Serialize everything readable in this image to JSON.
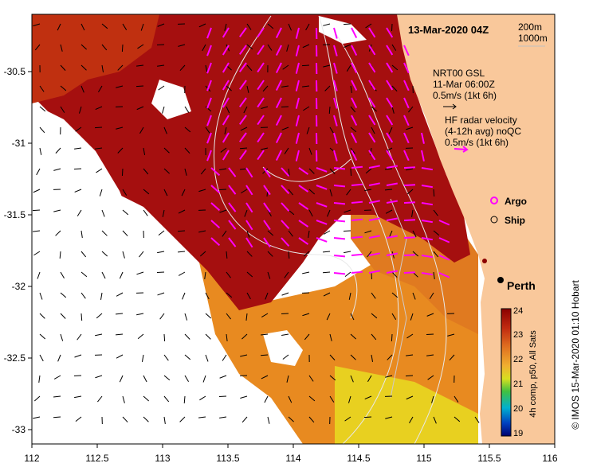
{
  "title": "13-Mar-2020 04Z",
  "depth_contours": [
    "200m",
    "1000m"
  ],
  "legend": {
    "model_line1": "NRT00 GSL",
    "model_line2": "11-Mar 06:00Z",
    "model_scale": "0.5m/s (1kt 6h)",
    "radar_line1": "HF radar velocity",
    "radar_line2": "(4-12h avg) noQC",
    "radar_scale": "0.5m/s (1kt 6h)",
    "argo": "Argo",
    "ship": "Ship"
  },
  "city": "Perth",
  "colorbar": {
    "ticks": [
      "24",
      "23",
      "22",
      "21",
      "20",
      "19"
    ],
    "caption": "4h comp, p50, All Sats",
    "colors": {
      "top": "#8b0000",
      "upper": "#d24a14",
      "mid": "#f0a020",
      "yellow": "#f0e020",
      "green": "#30c030",
      "cyan": "#00b0d0",
      "blue": "#0020a0",
      "bottom": "#000070"
    }
  },
  "credit": "© IMOS 15-Mar-2020 01:10 Hobart",
  "x_ticks": [
    "112",
    "112.5",
    "113",
    "113.5",
    "114",
    "114.5",
    "115",
    "115.5",
    "116"
  ],
  "y_ticks": [
    "-30.5",
    "-31",
    "-31.5",
    "-32",
    "-32.5",
    "-33"
  ],
  "colors": {
    "land": "#f9c89b",
    "warm": "#a50f0f",
    "radar_vector": "#ff00ff",
    "model_vector": "#000000"
  }
}
